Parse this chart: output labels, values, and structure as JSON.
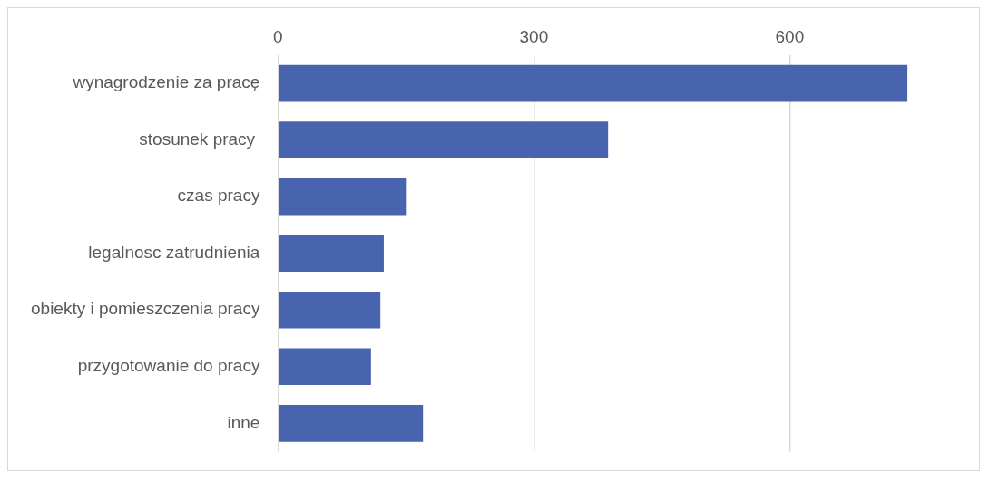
{
  "chart_data": {
    "type": "bar",
    "orientation": "horizontal",
    "categories": [
      "wynagrodzenie za pracę",
      "stosunek pracy ",
      "czas pracy",
      "legalnosc zatrudnienia",
      "obiekty i pomieszczenia pracy",
      "przygotowanie do pracy",
      "inne"
    ],
    "values": [
      738,
      387,
      151,
      124,
      120,
      109,
      170
    ],
    "color": "#4864ae",
    "xlim": [
      0,
      740
    ],
    "xticks": [
      0,
      300,
      600
    ],
    "grid": "x",
    "legend": false
  }
}
